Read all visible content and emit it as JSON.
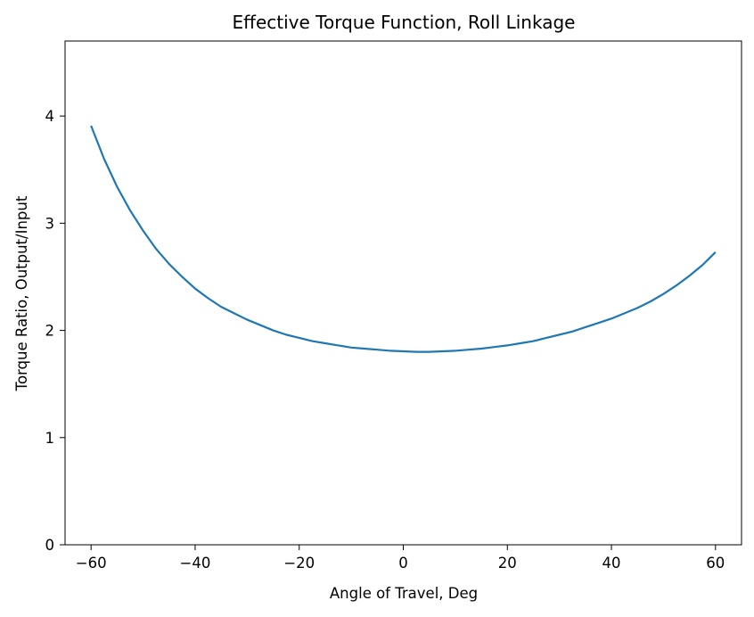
{
  "chart_data": {
    "type": "line",
    "title": "Effective Torque Function, Roll Linkage",
    "xlabel": "Angle of Travel, Deg",
    "ylabel": "Torque Ratio, Output/Input",
    "xlim": [
      -65,
      65
    ],
    "ylim": [
      0,
      4.7
    ],
    "xticks": [
      -60,
      -40,
      -20,
      0,
      20,
      40,
      60
    ],
    "xtick_labels": [
      "−60",
      "−40",
      "−20",
      "0",
      "20",
      "40",
      "60"
    ],
    "yticks": [
      0,
      1,
      2,
      3,
      4
    ],
    "ytick_labels": [
      "0",
      "1",
      "2",
      "3",
      "4"
    ],
    "grid": false,
    "series": [
      {
        "color": "#1f77b4",
        "x": [
          -60,
          -57.5,
          -55,
          -52.5,
          -50,
          -47.5,
          -45,
          -42.5,
          -40,
          -37.5,
          -35,
          -32.5,
          -30,
          -27.5,
          -25,
          -22.5,
          -20,
          -17.5,
          -15,
          -12.5,
          -10,
          -7.5,
          -5,
          -2.5,
          0,
          2.5,
          5,
          7.5,
          10,
          12.5,
          15,
          17.5,
          20,
          22.5,
          25,
          27.5,
          30,
          32.5,
          35,
          37.5,
          40,
          42.5,
          45,
          47.5,
          50,
          52.5,
          55,
          57.5,
          60
        ],
        "y": [
          3.91,
          3.6,
          3.34,
          3.12,
          2.93,
          2.76,
          2.62,
          2.5,
          2.39,
          2.3,
          2.22,
          2.16,
          2.1,
          2.05,
          2.0,
          1.96,
          1.93,
          1.9,
          1.88,
          1.86,
          1.84,
          1.83,
          1.82,
          1.81,
          1.805,
          1.8,
          1.8,
          1.805,
          1.81,
          1.82,
          1.83,
          1.845,
          1.86,
          1.88,
          1.9,
          1.93,
          1.96,
          1.99,
          2.03,
          2.07,
          2.11,
          2.16,
          2.21,
          2.27,
          2.34,
          2.42,
          2.51,
          2.61,
          2.73
        ]
      }
    ]
  }
}
